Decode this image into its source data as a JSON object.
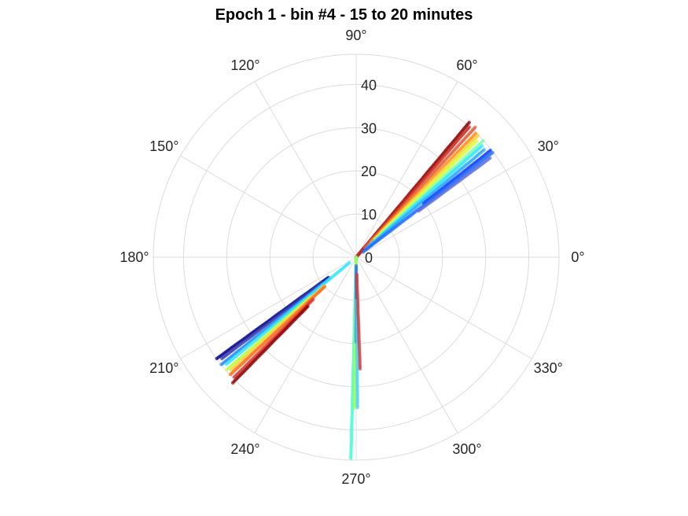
{
  "chart_data": {
    "type": "scatter",
    "coordinate_system": "polar",
    "title": "Epoch 1 - bin #4 - 15 to 20 minutes",
    "angle_ticks": [
      0,
      30,
      60,
      90,
      120,
      150,
      180,
      210,
      240,
      270,
      300,
      330
    ],
    "angle_tick_labels": [
      "0°",
      "30°",
      "60°",
      "90°",
      "120°",
      "150°",
      "180°",
      "210°",
      "240°",
      "270°",
      "300°",
      "330°"
    ],
    "radius_ticks": [
      0,
      10,
      20,
      30,
      40
    ],
    "radius_tick_labels": [
      "0",
      "10",
      "20",
      "30",
      "40"
    ],
    "rlim": [
      0,
      47
    ],
    "grid": true,
    "colormap": "jet",
    "series": [
      {
        "theta": 50.0,
        "r_min": 0,
        "r_max": 41,
        "color": "#8b0000"
      },
      {
        "theta": 49.0,
        "r_min": 0,
        "r_max": 40,
        "color": "#cc2a1f"
      },
      {
        "theta": 47.5,
        "r_min": 3,
        "r_max": 41,
        "color": "#e05c3a"
      },
      {
        "theta": 46.0,
        "r_min": 5,
        "r_max": 40,
        "color": "#ff8c1a"
      },
      {
        "theta": 45.0,
        "r_min": 8,
        "r_max": 40,
        "color": "#ffd23f"
      },
      {
        "theta": 44.0,
        "r_min": 6,
        "r_max": 39,
        "color": "#d4ff3a"
      },
      {
        "theta": 42.5,
        "r_min": 8,
        "r_max": 40,
        "color": "#7dffb0"
      },
      {
        "theta": 41.5,
        "r_min": 4,
        "r_max": 39,
        "color": "#2ee8ff"
      },
      {
        "theta": 40.0,
        "r_min": 3,
        "r_max": 39,
        "color": "#2aa8ff"
      },
      {
        "theta": 38.5,
        "r_min": 20,
        "r_max": 40,
        "color": "#0a3cff"
      },
      {
        "theta": 37.5,
        "r_min": 2,
        "r_max": 40,
        "color": "#1e6bff"
      },
      {
        "theta": 36.5,
        "r_min": 18,
        "r_max": 39,
        "color": "#5a6ee0"
      },
      {
        "theta": 216.0,
        "r_min": 8,
        "r_max": 40,
        "color": "#00008b"
      },
      {
        "theta": 217.0,
        "r_min": 10,
        "r_max": 39,
        "color": "#3a3ab0"
      },
      {
        "theta": 218.5,
        "r_min": 8,
        "r_max": 40,
        "color": "#1e8cff"
      },
      {
        "theta": 219.5,
        "r_min": 2,
        "r_max": 39,
        "color": "#2ee8ff"
      },
      {
        "theta": 221.0,
        "r_min": 14,
        "r_max": 40,
        "color": "#b6ff3a"
      },
      {
        "theta": 222.0,
        "r_min": 10,
        "r_max": 39,
        "color": "#ffd23f"
      },
      {
        "theta": 223.0,
        "r_min": 10,
        "r_max": 40,
        "color": "#ff6a1a"
      },
      {
        "theta": 224.5,
        "r_min": 14,
        "r_max": 40,
        "color": "#d93030"
      },
      {
        "theta": 225.5,
        "r_min": 16,
        "r_max": 41,
        "color": "#8b0000"
      },
      {
        "theta": 268.5,
        "r_min": 0,
        "r_max": 47,
        "color": "#40ffd0"
      },
      {
        "theta": 269.3,
        "r_min": 0,
        "r_max": 35,
        "color": "#a0ff50"
      },
      {
        "theta": 270.0,
        "r_min": 2,
        "r_max": 20,
        "color": "#2e6bff"
      },
      {
        "theta": 270.5,
        "r_min": 10,
        "r_max": 35,
        "color": "#4ad0ff"
      },
      {
        "theta": 272.0,
        "r_min": 4,
        "r_max": 26,
        "color": "#c84040"
      }
    ]
  }
}
